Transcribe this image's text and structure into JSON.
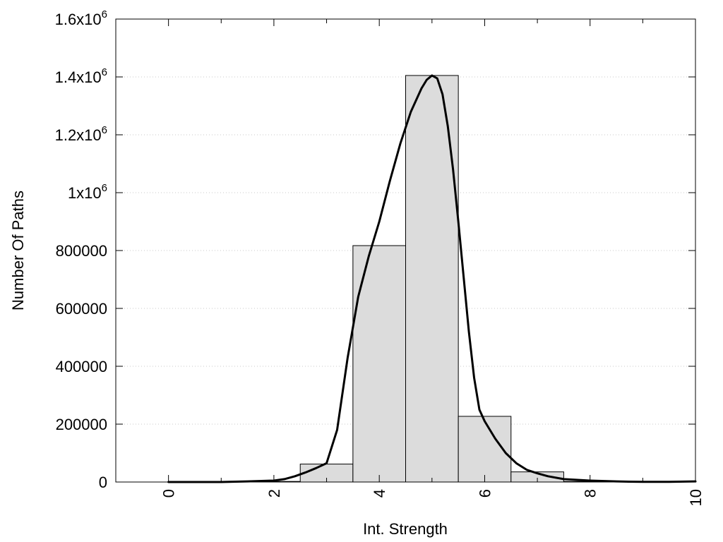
{
  "chart_data": {
    "type": "bar",
    "title": "",
    "xlabel": "Int. Strength",
    "ylabel": "Number Of Paths",
    "xlim": [
      -1,
      10
    ],
    "ylim": [
      0,
      1600000
    ],
    "x_ticks": [
      0,
      2,
      4,
      6,
      8,
      10
    ],
    "x_tick_labels": [
      "0",
      "2",
      "4",
      "6",
      "8",
      "10"
    ],
    "y_ticks": [
      0,
      200000,
      400000,
      600000,
      800000,
      1000000,
      1200000,
      1400000,
      1600000
    ],
    "y_tick_labels": [
      {
        "text": "0"
      },
      {
        "text": "200000"
      },
      {
        "text": "400000"
      },
      {
        "text": "600000"
      },
      {
        "text": "800000"
      },
      {
        "base": "1x10",
        "exp": "6"
      },
      {
        "base": "1.2x10",
        "exp": "6"
      },
      {
        "base": "1.4x10",
        "exp": "6"
      },
      {
        "base": "1.6x10",
        "exp": "6"
      }
    ],
    "grid": "horizontal-dotted",
    "bar_width": 1,
    "bar_color": "#dcdcdc",
    "bars": [
      {
        "x": 0,
        "value": 0
      },
      {
        "x": 1,
        "value": 0
      },
      {
        "x": 2,
        "value": 2000
      },
      {
        "x": 3,
        "value": 62000
      },
      {
        "x": 4,
        "value": 817000
      },
      {
        "x": 5,
        "value": 1405000
      },
      {
        "x": 6,
        "value": 227000
      },
      {
        "x": 7,
        "value": 35000
      },
      {
        "x": 8,
        "value": 2000
      },
      {
        "x": 9,
        "value": 0
      },
      {
        "x": 10,
        "value": 0
      }
    ],
    "curve_color": "#000000",
    "curve": {
      "x": [
        0,
        0.5,
        1,
        1.5,
        2,
        2.2,
        2.4,
        2.6,
        2.8,
        3.0,
        3.2,
        3.4,
        3.6,
        3.8,
        4.0,
        4.2,
        4.4,
        4.6,
        4.8,
        4.9,
        5.0,
        5.1,
        5.2,
        5.3,
        5.4,
        5.5,
        5.6,
        5.7,
        5.8,
        5.9,
        6.0,
        6.2,
        6.4,
        6.6,
        6.8,
        7.0,
        7.2,
        7.5,
        8.0,
        8.5,
        9.0,
        9.5,
        10.0
      ],
      "y": [
        0,
        0,
        0,
        2000,
        5000,
        10000,
        20000,
        33000,
        48000,
        65000,
        180000,
        430000,
        640000,
        780000,
        900000,
        1040000,
        1170000,
        1280000,
        1360000,
        1390000,
        1405000,
        1395000,
        1340000,
        1230000,
        1080000,
        900000,
        710000,
        520000,
        360000,
        250000,
        210000,
        150000,
        100000,
        65000,
        42000,
        30000,
        20000,
        10000,
        5000,
        2000,
        500,
        500,
        2000
      ]
    }
  }
}
